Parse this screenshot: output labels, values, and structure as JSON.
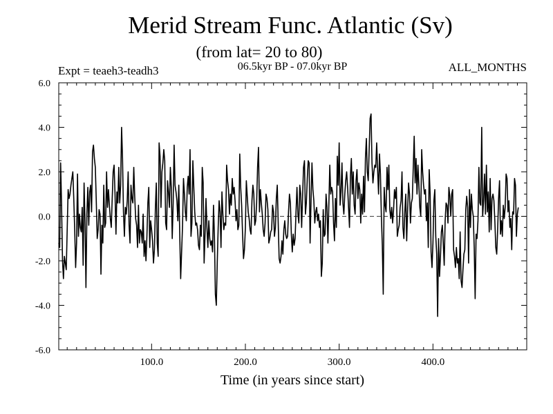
{
  "chart_data": {
    "type": "line",
    "title": "Merid Stream Func. Atlantic (Sv)",
    "subtitle": "(from lat= 20 to 80)",
    "experiment_label": "Expt = teaeh3-teadh3",
    "period_label": "06.5kyr BP - 07.0kyr BP",
    "months_label": "ALL_MONTHS",
    "xlabel": "Time (in years since start)",
    "ylabel": "",
    "xlim": [
      1,
      500
    ],
    "ylim": [
      -6.0,
      6.0
    ],
    "x_ticks": [
      100,
      200,
      300,
      400
    ],
    "x_tick_labels": [
      "100.0",
      "200.0",
      "300.0",
      "400.0"
    ],
    "y_ticks": [
      -6,
      -4,
      -2,
      0,
      2,
      4,
      6
    ],
    "y_tick_labels": [
      "-6.0",
      "-4.0",
      "-2.0",
      "0.0",
      "2.0",
      "4.0",
      "6.0"
    ],
    "zero_line": true,
    "grid": false,
    "series": [
      {
        "name": "teaeh3-teadh3",
        "x_start": 1,
        "x_step": 1,
        "values": [
          -1.2,
          -1.4,
          2.4,
          0.5,
          -2.0,
          -2.8,
          -1.8,
          -2.1,
          -2.4,
          -0.6,
          1.2,
          0.8,
          1.0,
          1.4,
          1.7,
          2.0,
          0.8,
          -0.6,
          -2.3,
          -1.2,
          1.9,
          -0.9,
          0.1,
          -0.5,
          -0.7,
          0.4,
          -2.2,
          1.5,
          -0.2,
          -3.2,
          0.1,
          1.3,
          -0.4,
          1.1,
          1.4,
          0.2,
          2.9,
          3.2,
          2.6,
          2.2,
          0.7,
          -1.0,
          -0.6,
          0.3,
          0.1,
          -2.6,
          -0.4,
          -1.2,
          1.4,
          -0.5,
          -0.3,
          2.0,
          0.4,
          1.2,
          0.5,
          -0.1,
          -0.5,
          0.8,
          2.0,
          2.3,
          1.0,
          -0.8,
          1.1,
          0.6,
          2.2,
          0.6,
          1.4,
          4.0,
          2.6,
          0.2,
          -0.9,
          0.4,
          0.1,
          0.7,
          2.0,
          -0.4,
          -1.2,
          1.4,
          0.8,
          0.6,
          2.2,
          0.9,
          -0.1,
          -0.4,
          -1.4,
          0.5,
          -1.2,
          -0.6,
          -0.7,
          -1.2,
          0.1,
          -1.8,
          -1.1,
          -2.0,
          -0.9,
          0.6,
          1.3,
          -1.4,
          -0.2,
          -0.6,
          -1.1,
          -2.1,
          -1.5,
          0.3,
          1.5,
          -1.2,
          -1.8,
          3.3,
          2.7,
          0.4,
          2.0,
          2.4,
          3.0,
          2.5,
          -0.3,
          -0.6,
          1.6,
          1.1,
          0.4,
          2.2,
          1.3,
          -1.0,
          0.6,
          3.2,
          1.4,
          1.1,
          0.7,
          -0.2,
          1.4,
          -0.8,
          -2.8,
          -1.6,
          -0.4,
          1.7,
          1.0,
          0.2,
          -0.2,
          1.3,
          1.8,
          1.0,
          3.0,
          -0.9,
          -0.3,
          2.5,
          1.3,
          0.2,
          -0.4,
          -0.3,
          -0.6,
          -1.3,
          -1.5,
          -0.4,
          -0.9,
          2.2,
          1.5,
          -2.1,
          -0.8,
          0.8,
          -0.5,
          -1.4,
          -0.2,
          -1.0,
          -1.3,
          -1.1,
          -1.6,
          0.5,
          -0.9,
          -3.5,
          -4.0,
          -2.1,
          -0.5,
          0.7,
          0.2,
          -1.4,
          1.1,
          0.1,
          -0.6,
          -0.3,
          -0.4,
          2.3,
          1.6,
          1.2,
          0.1,
          1.0,
          0.5,
          1.7,
          1.0,
          1.3,
          0.7,
          -0.2,
          0.3,
          -0.6,
          -0.4,
          2.8,
          1.3,
          0.5,
          -0.8,
          -1.9,
          -1.5,
          -0.5,
          1.6,
          0.9,
          0.2,
          -0.1,
          -0.6,
          -0.8,
          0.7,
          1.4,
          1.0,
          -0.4,
          -0.2,
          0.6,
          2.2,
          3.1,
          0.2,
          1.2,
          0.6,
          0.1,
          -0.6,
          -0.9,
          -0.3,
          1.0,
          0.8,
          0.3,
          -1.2,
          -1.0,
          -0.7,
          -0.6,
          0.5,
          0.2,
          -0.9,
          -0.5,
          0.8,
          1.4,
          -0.3,
          -1.9,
          -2.1,
          -1.8,
          -1.1,
          -1.7,
          -0.6,
          -0.2,
          -0.8,
          -1.0,
          -0.9,
          0.2,
          1.0,
          0.6,
          -0.8,
          -1.6,
          -0.8,
          -1.3,
          -1.0,
          0.2,
          1.3,
          0.1,
          -0.3,
          1.4,
          1.0,
          -0.5,
          0.9,
          2.2,
          2.5,
          0.1,
          0.6,
          1.7,
          2.5,
          2.4,
          -1.2,
          0.7,
          2.4,
          1.2,
          0.7,
          -0.3,
          0.2,
          0.4,
          -0.2,
          0.1,
          -0.5,
          -0.2,
          -2.7,
          -2.1,
          0.3,
          -0.9,
          -0.8,
          1.0,
          0.4,
          -1.2,
          0.5,
          2.3,
          1.0,
          1.3,
          1.1,
          -0.3,
          -1.1,
          0.8,
          -0.5,
          2.7,
          1.4,
          3.3,
          0.5,
          1.1,
          2.4,
          0.6,
          0.1,
          1.0,
          1.6,
          2.0,
          1.3,
          0.4,
          -0.5,
          1.8,
          2.6,
          1.0,
          2.0,
          0.5,
          0.1,
          1.6,
          2.1,
          0.8,
          1.5,
          1.2,
          -0.3,
          1.0,
          0.1,
          1.8,
          0.2,
          2.6,
          3.5,
          2.0,
          1.6,
          3.0,
          4.4,
          4.6,
          2.4,
          1.5,
          2.0,
          2.3,
          2.2,
          3.3,
          2.1,
          1.0,
          2.8,
          1.9,
          0.0,
          -1.3,
          -3.5,
          1.3,
          0.5,
          0.2,
          2.2,
          1.2,
          2.3,
          0.3,
          -0.1,
          0.4,
          -0.3,
          0.3,
          1.2,
          0.8,
          1.3,
          -0.9,
          -0.6,
          -0.4,
          0.4,
          0.7,
          2.0,
          -0.5,
          -1.0,
          0.2,
          1.0,
          -1.1,
          0.3,
          1.5,
          1.0,
          -0.3,
          0.6,
          0.8,
          2.2,
          3.6,
          1.5,
          2.6,
          1.0,
          2.3,
          1.4,
          0.4,
          0.0,
          3.0,
          2.0,
          1.4,
          1.0,
          1.2,
          -0.2,
          0.6,
          -1.4,
          2.1,
          1.0,
          -1.6,
          -2.3,
          -1.2,
          0.7,
          1.2,
          -0.9,
          -1.7,
          -4.5,
          -1.0,
          -2.7,
          -1.8,
          -0.7,
          -0.4,
          -1.2,
          -2.2,
          -0.2,
          0.6,
          0.5,
          -0.3,
          1.3,
          0.9,
          0.0,
          1.0,
          1.2,
          -1.5,
          -1.8,
          -2.3,
          -1.4,
          -2.1,
          -1.9,
          -2.8,
          -0.7,
          -2.9,
          -3.2,
          -2.4,
          -1.7,
          -1.5,
          0.3,
          0.9,
          0.4,
          -2.1,
          1.2,
          -0.5,
          1.0,
          0.3,
          0.0,
          -1.4,
          -3.7,
          -0.8,
          -1.0,
          -0.2,
          2.2,
          0.6,
          0.5,
          4.0,
          0.0,
          0.7,
          1.9,
          0.1,
          2.3,
          0.2,
          1.1,
          -0.7,
          1.7,
          -0.6,
          0.8,
          1.0,
          0.7,
          -0.2,
          -1.4,
          -1.7,
          -0.6,
          0.8,
          1.6,
          -0.8,
          -0.2,
          -0.9,
          0.5,
          -0.1,
          0.4,
          1.9,
          1.7,
          0.2,
          0.7,
          -0.5,
          -0.1,
          -1.5,
          0.2,
          0.1,
          1.7,
          1.4,
          -0.9,
          0.1,
          0.4
        ]
      }
    ]
  }
}
